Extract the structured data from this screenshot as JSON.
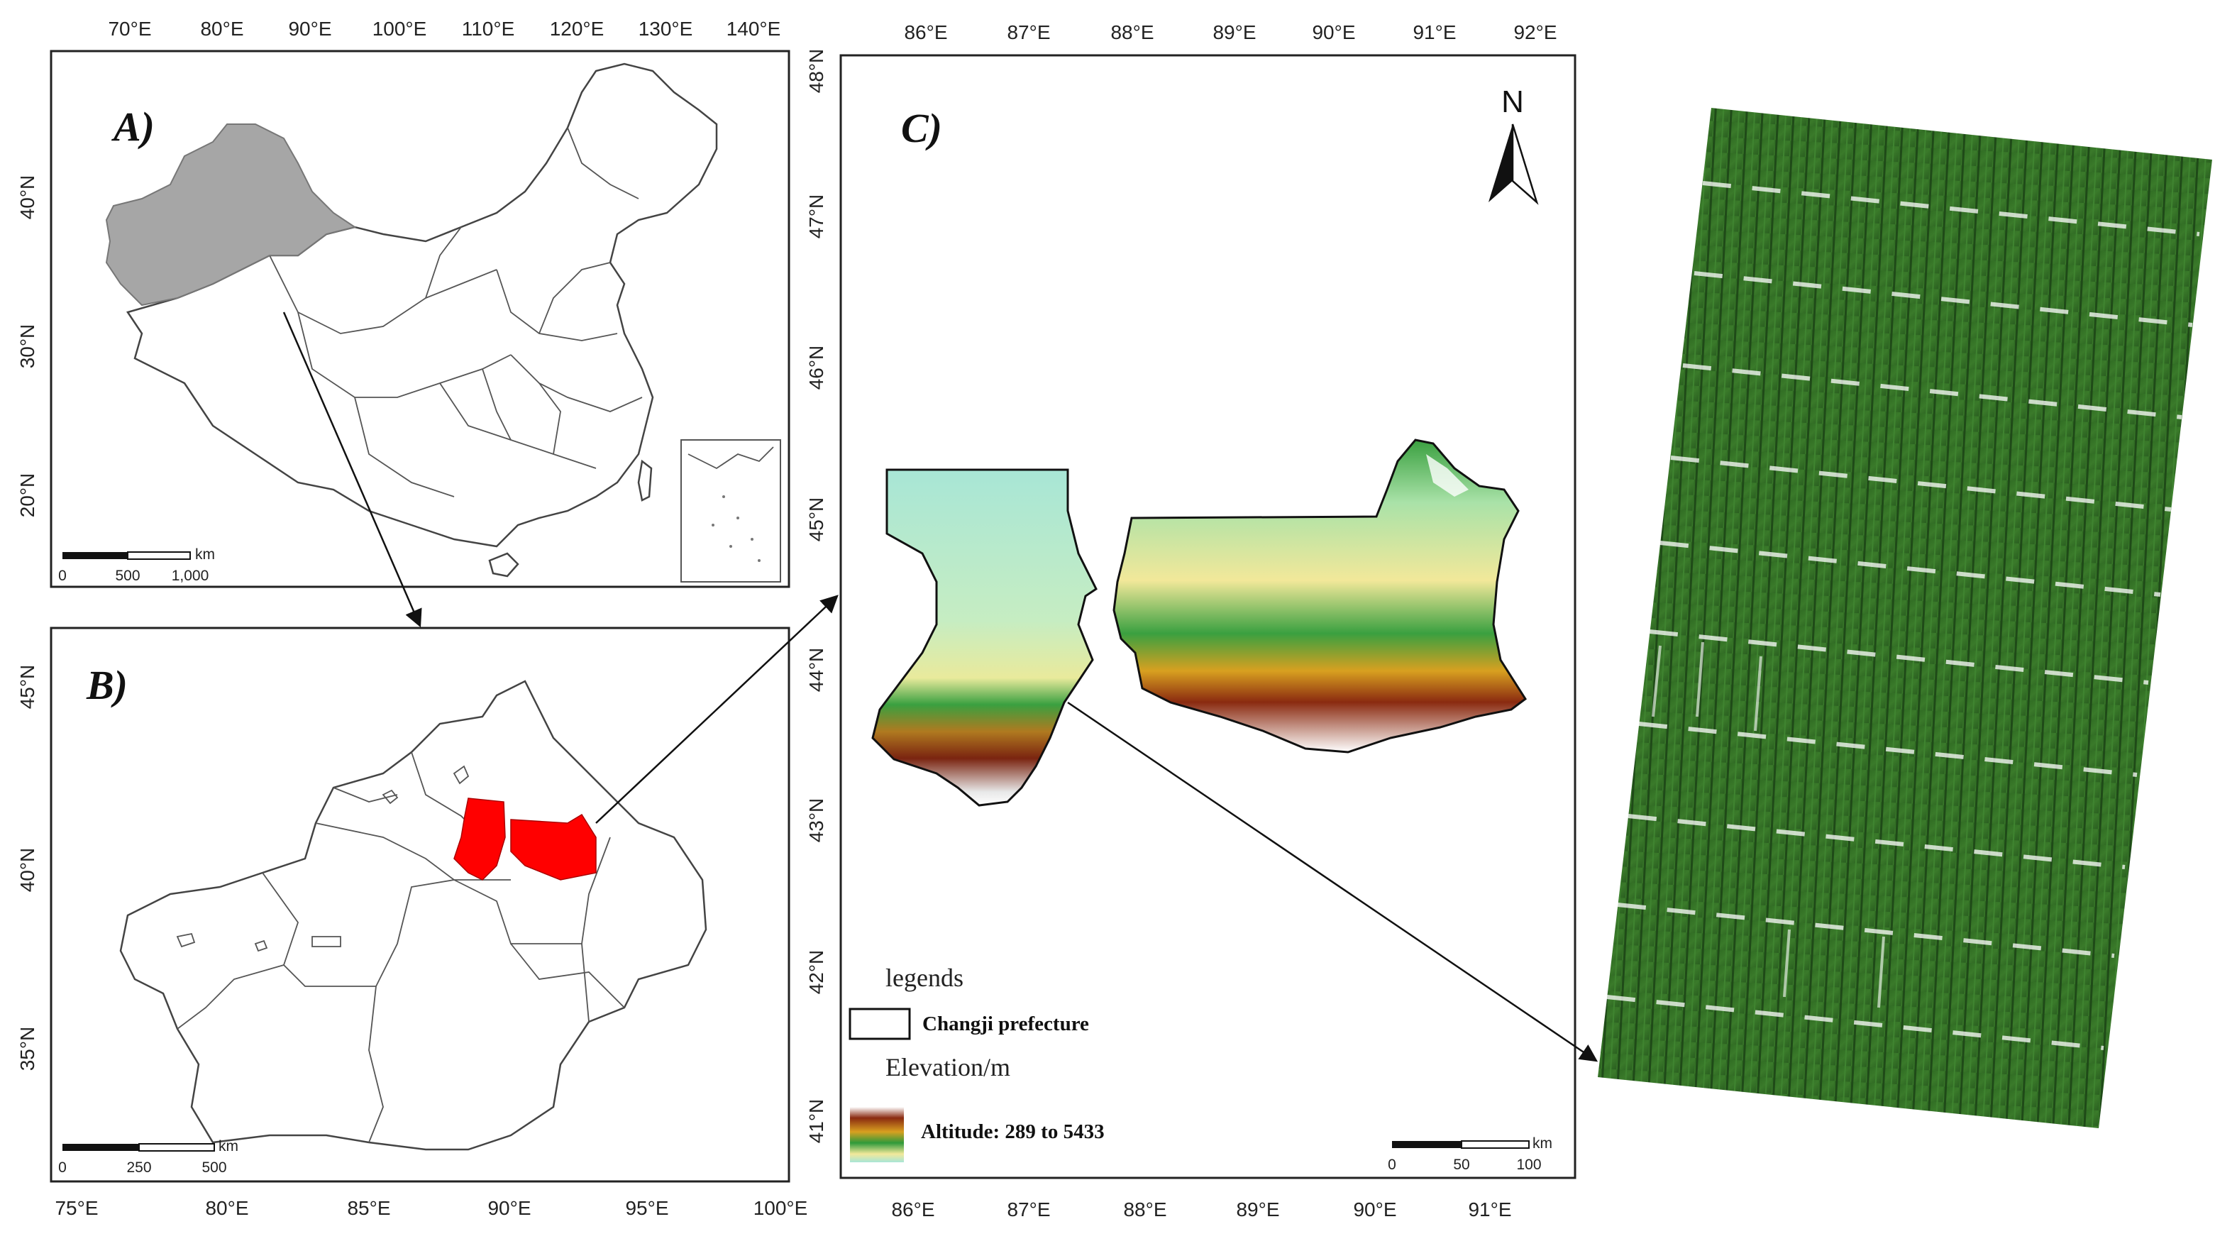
{
  "panels": {
    "a": {
      "label": "A)",
      "top_ticks": [
        "70°E",
        "80°E",
        "90°E",
        "100°E",
        "110°E",
        "120°E",
        "130°E",
        "140°E"
      ],
      "left_ticks": [
        "40°N",
        "30°N",
        "20°N"
      ],
      "scale_unit": "km",
      "scale_ticks": [
        "0",
        "500",
        "1,000"
      ]
    },
    "b": {
      "label": "B)",
      "bottom_ticks": [
        "75°E",
        "80°E",
        "85°E",
        "90°E",
        "95°E",
        "100°E"
      ],
      "left_ticks": [
        "45°N",
        "40°N",
        "35°N"
      ],
      "scale_unit": "km",
      "scale_ticks": [
        "0",
        "250",
        "500"
      ]
    },
    "c": {
      "label": "C)",
      "top_ticks": [
        "86°E",
        "87°E",
        "88°E",
        "89°E",
        "90°E",
        "91°E",
        "92°E"
      ],
      "bottom_ticks": [
        "86°E",
        "87°E",
        "88°E",
        "89°E",
        "90°E",
        "91°E"
      ],
      "left_ticks": [
        "48°N",
        "47°N",
        "46°N",
        "45°N",
        "44°N",
        "43°N",
        "42°N",
        "41°N"
      ],
      "north_label": "N",
      "scale_unit": "km",
      "scale_ticks": [
        "0",
        "50",
        "100"
      ],
      "legend": {
        "title": "legends",
        "boundary_label": "Changji prefecture",
        "elevation_title": "Elevation/m",
        "altitude_label": "Altitude: 289 to 5433",
        "altitude_min": 289,
        "altitude_max": 5433
      }
    }
  },
  "colors": {
    "highlight_province": "#a6a6a6",
    "study_area": "#ff0000",
    "elevation_low": "#a8e6d6",
    "elevation_mid": "#f2e89a",
    "elevation_green": "#2f9a3a",
    "elevation_high": "#8a2a10",
    "elevation_peak": "#ffffff",
    "crop_field": "#2f6a24"
  },
  "icons": {
    "north_arrow": "north-arrow-icon"
  }
}
